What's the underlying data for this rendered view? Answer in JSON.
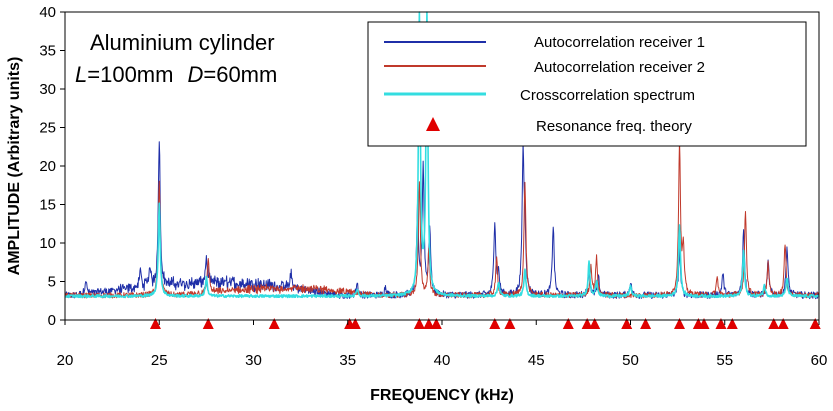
{
  "chart_data": {
    "type": "line",
    "xlabel": "FREQUENCY (kHz)",
    "ylabel": "AMPLITUDE (Arbitrary units)",
    "xlim": [
      20,
      60
    ],
    "ylim": [
      0,
      40
    ],
    "x_ticks": [
      "20",
      "25",
      "30",
      "35",
      "40",
      "45",
      "50",
      "55",
      "60"
    ],
    "y_ticks": [
      "0",
      "5",
      "10",
      "15",
      "20",
      "25",
      "30",
      "35",
      "40"
    ],
    "annotation": {
      "line1": "Aluminium cylinder",
      "line2_L": "L",
      "line2_L_value": "=100mm",
      "line2_D": "D",
      "line2_D_value": "=60mm"
    },
    "legend_position": "top-right",
    "series": [
      {
        "name": "Autocorrelation receiver 1",
        "color": "#1f2fa8",
        "baseline": 3.2,
        "humps": [
          {
            "x1": 20.5,
            "x2": 34.5,
            "x": 28.5,
            "y": 1.6
          }
        ],
        "peaks": [
          [
            21.1,
            5.0
          ],
          [
            24.0,
            5.3
          ],
          [
            24.5,
            5.5
          ],
          [
            25.0,
            22.5
          ],
          [
            27.5,
            6.5
          ],
          [
            32.0,
            5.0
          ],
          [
            35.5,
            4.8
          ],
          [
            37.0,
            4.4
          ],
          [
            38.7,
            14.0
          ],
          [
            39.0,
            20.0
          ],
          [
            39.35,
            12.0
          ],
          [
            42.8,
            12.8
          ],
          [
            43.0,
            6.0
          ],
          [
            44.3,
            21.0
          ],
          [
            44.4,
            10.0
          ],
          [
            45.9,
            12.2
          ],
          [
            47.8,
            6.5
          ],
          [
            48.3,
            5.5
          ],
          [
            50.0,
            5.0
          ],
          [
            52.6,
            9.0
          ],
          [
            54.9,
            6.0
          ],
          [
            56.0,
            12.0
          ],
          [
            57.3,
            7.5
          ],
          [
            58.3,
            9.5
          ]
        ]
      },
      {
        "name": "Autocorrelation receiver 2",
        "color": "#c0392b",
        "baseline": 3.2,
        "humps": [
          {
            "x1": 26.0,
            "x2": 36.5,
            "x": 32.0,
            "y": 0.9
          }
        ],
        "peaks": [
          [
            25.0,
            18.0
          ],
          [
            27.6,
            7.6
          ],
          [
            38.8,
            18.0
          ],
          [
            39.3,
            9.0
          ],
          [
            42.9,
            8.0
          ],
          [
            44.4,
            18.0
          ],
          [
            47.9,
            7.0
          ],
          [
            48.2,
            8.0
          ],
          [
            52.6,
            23.0
          ],
          [
            52.8,
            9.0
          ],
          [
            54.6,
            5.5
          ],
          [
            56.1,
            14.2
          ],
          [
            57.3,
            7.3
          ],
          [
            58.2,
            9.8
          ]
        ]
      },
      {
        "name": "Crosscorrelation spectrum",
        "color": "#33dde0",
        "baseline": 3.1,
        "humps": [],
        "peaks": [
          [
            25.0,
            15.0
          ],
          [
            27.5,
            5.5
          ],
          [
            35.5,
            4.0
          ],
          [
            38.8,
            40.0
          ],
          [
            39.2,
            40.0
          ],
          [
            43.0,
            5.0
          ],
          [
            44.4,
            6.5
          ],
          [
            47.8,
            7.5
          ],
          [
            48.2,
            5.0
          ],
          [
            50.0,
            4.5
          ],
          [
            52.6,
            12.5
          ],
          [
            56.0,
            9.0
          ],
          [
            57.1,
            4.5
          ],
          [
            58.3,
            5.5
          ]
        ]
      }
    ],
    "theory": {
      "name": "Resonance freq. theory",
      "color": "#e00000",
      "x": [
        24.8,
        27.6,
        31.1,
        35.1,
        35.4,
        38.8,
        39.3,
        39.7,
        42.8,
        43.6,
        46.7,
        47.7,
        48.1,
        49.8,
        50.8,
        52.6,
        53.6,
        53.9,
        54.8,
        55.4,
        57.6,
        58.1,
        59.8
      ]
    }
  }
}
